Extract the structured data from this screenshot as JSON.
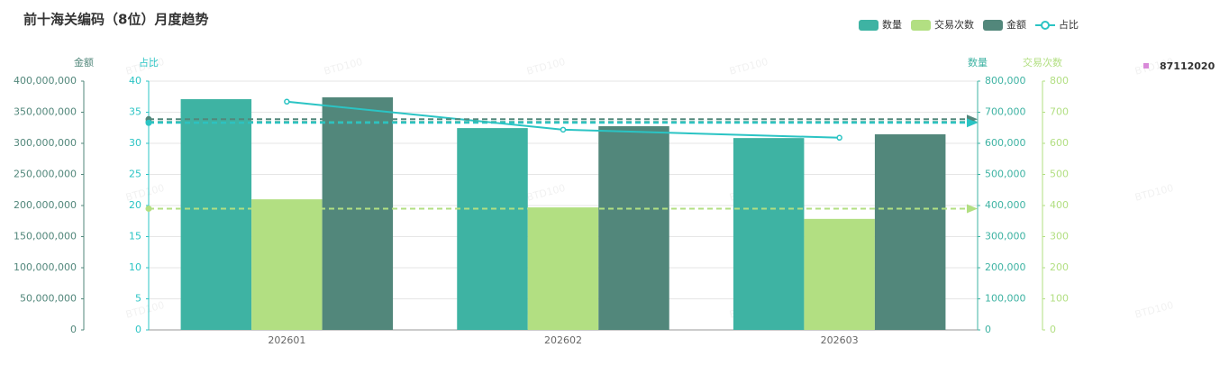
{
  "chart_data": {
    "type": "bar",
    "title": "前十海关编码（8位）月度趋势",
    "categories": [
      "202601",
      "202602",
      "202603"
    ],
    "y_axes": [
      {
        "name": "金额",
        "color": "#52877b",
        "ylim": [
          0,
          400000000
        ],
        "yticks": [
          0,
          {
            "value": 50000000,
            "label": "50,000,000"
          },
          {
            "value": 100000000,
            "label": "100,000,000"
          },
          {
            "value": 150000000,
            "label": "150,000,000"
          },
          {
            "value": 200000000,
            "label": "200,000,000"
          },
          {
            "value": 250000000,
            "label": "250,000,000"
          },
          {
            "value": 300000000,
            "label": "300,000,000"
          },
          {
            "value": 350000000,
            "label": "350,000,000"
          },
          {
            "value": 400000000,
            "label": "400,000,000"
          }
        ]
      },
      {
        "name": "占比",
        "color": "#2bc4c4",
        "ylim": [
          0,
          40
        ],
        "yticks": [
          0,
          5,
          10,
          15,
          20,
          25,
          30,
          35,
          40
        ]
      },
      {
        "name": "数量",
        "color": "#3eb3a3",
        "ylim": [
          0,
          800000
        ],
        "yticks": [
          0,
          {
            "value": 100000,
            "label": "100,000"
          },
          {
            "value": 200000,
            "label": "200,000"
          },
          {
            "value": 300000,
            "label": "300,000"
          },
          {
            "value": 400000,
            "label": "400,000"
          },
          {
            "value": 500000,
            "label": "500,000"
          },
          {
            "value": 600000,
            "label": "600,000"
          },
          {
            "value": 700000,
            "label": "700,000"
          },
          {
            "value": 800000,
            "label": "800,000"
          }
        ]
      },
      {
        "name": "交易次数",
        "color": "#b2df82",
        "ylim": [
          0,
          800
        ],
        "yticks": [
          0,
          100,
          200,
          300,
          400,
          500,
          600,
          700,
          800
        ]
      }
    ],
    "series": [
      {
        "name": "数量",
        "type": "bar",
        "axis": 2,
        "color": "#3eb3a3",
        "values": [
          742000,
          649000,
          617000
        ],
        "average": 669000
      },
      {
        "name": "交易次数",
        "type": "bar",
        "axis": 3,
        "color": "#b2df82",
        "values": [
          420,
          394,
          357
        ],
        "average": 390
      },
      {
        "name": "金额",
        "type": "bar",
        "axis": 0,
        "color": "#52877b",
        "values": [
          374000000,
          327500000,
          314500000
        ],
        "average": 338700000
      },
      {
        "name": "占比",
        "type": "line",
        "axis": 1,
        "color": "#2bc4c4",
        "values": [
          36.7,
          32.2,
          30.9
        ],
        "average": 33.3
      }
    ],
    "grid": true,
    "legend": "top-right",
    "side_legend": {
      "name": "87112020",
      "color": "#d98ad9"
    },
    "watermark": "BTD100"
  }
}
